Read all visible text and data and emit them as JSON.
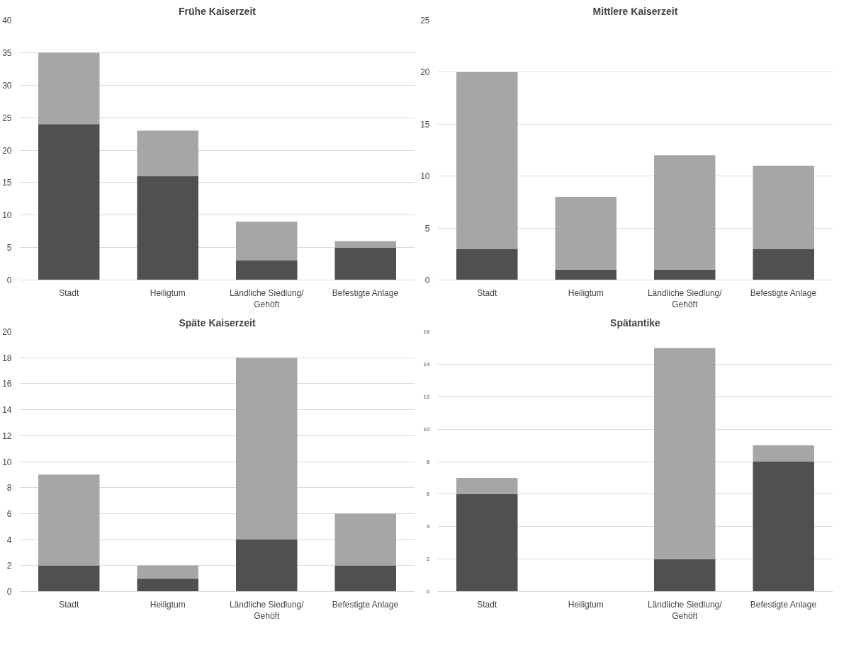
{
  "chart_data": [
    {
      "type": "bar",
      "title": "Frühe Kaiserzeit",
      "stacked": true,
      "categories": [
        "Stadt",
        "Heiligtum",
        "Ländliche Siedlung/\nGehöft",
        "Befestigte Anlage"
      ],
      "ylim": [
        0,
        40
      ],
      "yticks": [
        0,
        5,
        10,
        15,
        20,
        25,
        30,
        35,
        40
      ],
      "grid": "y",
      "series": [
        {
          "color": "#505050",
          "values": [
            24,
            16,
            3,
            5
          ]
        },
        {
          "color": "#a6a6a6",
          "values": [
            11,
            7,
            6,
            1
          ]
        }
      ]
    },
    {
      "type": "bar",
      "title": "Mittlere Kaiserzeit",
      "stacked": true,
      "categories": [
        "Stadt",
        "Heiligtum",
        "Ländliche Siedlung/\nGehöft",
        "Befestigte Anlage"
      ],
      "ylim": [
        0,
        25
      ],
      "yticks": [
        0,
        5,
        10,
        15,
        20,
        25
      ],
      "grid": "y",
      "series": [
        {
          "color": "#505050",
          "values": [
            3,
            1,
            1,
            3
          ]
        },
        {
          "color": "#a6a6a6",
          "values": [
            17,
            7,
            11,
            8
          ]
        }
      ]
    },
    {
      "type": "bar",
      "title": "Späte Kaiserzeit",
      "stacked": true,
      "categories": [
        "Stadt",
        "Heiligtum",
        "Ländliche Siedlung/\nGehöft",
        "Befestigte Anlage"
      ],
      "ylim": [
        0,
        20
      ],
      "yticks": [
        0,
        2,
        4,
        6,
        8,
        10,
        12,
        14,
        16,
        18,
        20
      ],
      "grid": "y",
      "series": [
        {
          "color": "#505050",
          "values": [
            2,
            1,
            4,
            2
          ]
        },
        {
          "color": "#a6a6a6",
          "values": [
            7,
            1,
            14,
            4
          ]
        }
      ]
    },
    {
      "type": "bar",
      "title": "Spätantike",
      "stacked": true,
      "categories": [
        "Stadt",
        "Heiligtum",
        "Ländliche Siedlung/\nGehöft",
        "Befestigte Anlage"
      ],
      "ylim": [
        0,
        16
      ],
      "yticks": [
        0,
        2,
        4,
        6,
        8,
        10,
        12,
        14,
        16
      ],
      "grid": "y",
      "series": [
        {
          "color": "#505050",
          "values": [
            6,
            0,
            2,
            8
          ]
        },
        {
          "color": "#a6a6a6",
          "values": [
            1,
            0,
            13,
            1
          ]
        }
      ]
    }
  ]
}
